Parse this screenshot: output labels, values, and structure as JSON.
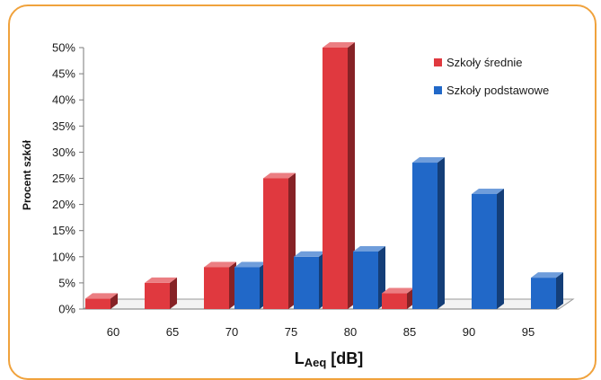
{
  "chart_data": {
    "type": "bar",
    "categories": [
      "60",
      "65",
      "70",
      "75",
      "80",
      "85",
      "90",
      "95"
    ],
    "series": [
      {
        "name": "Szkoły średnie",
        "color": "#e0393f",
        "values": [
          2,
          5,
          8,
          25,
          50,
          3,
          0,
          0
        ]
      },
      {
        "name": "Szkoły podstawowe",
        "color": "#2168c8",
        "values": [
          0,
          0,
          8,
          10,
          11,
          28,
          22,
          6
        ]
      }
    ],
    "ylabel": "Procent szkół",
    "xlabel_main": "L",
    "xlabel_sub": "Aeq",
    "xlabel_rest": " [dB]",
    "ylim": [
      0,
      50
    ],
    "yticks": [
      "0%",
      "5%",
      "10%",
      "15%",
      "20%",
      "25%",
      "30%",
      "35%",
      "40%",
      "45%",
      "50%"
    ],
    "ytick_values": [
      0,
      5,
      10,
      15,
      20,
      25,
      30,
      35,
      40,
      45,
      50
    ],
    "legend_position": "top-right",
    "grid": false
  }
}
